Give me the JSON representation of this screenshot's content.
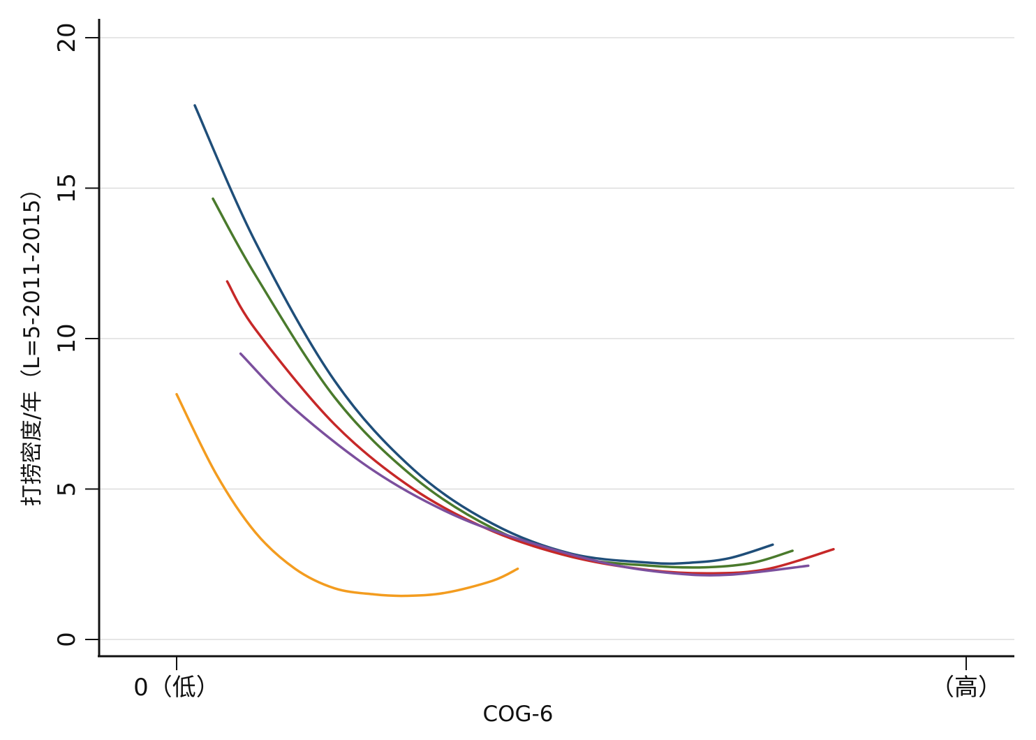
{
  "chart_data": {
    "type": "line",
    "title": "",
    "xlabel": "COG-6",
    "ylabel": "打捞密度/年（L=5-2011-2015）",
    "ylim": [
      0,
      20
    ],
    "yticks": [
      0,
      5,
      10,
      15,
      20
    ],
    "xlim": [
      -0.1,
      1.06
    ],
    "xticks": [
      {
        "value": 0,
        "label": "0（低）"
      },
      {
        "value": 1,
        "label": "（高）"
      }
    ],
    "grid": true,
    "legend": "none",
    "series": [
      {
        "color": "#1f4e79",
        "x": [
          0.023,
          0.1,
          0.2,
          0.3,
          0.4,
          0.5,
          0.6,
          0.65,
          0.7,
          0.755
        ],
        "y": [
          17.75,
          13.2,
          8.6,
          5.65,
          3.85,
          2.85,
          2.55,
          2.55,
          2.7,
          3.15
        ]
      },
      {
        "color": "#4a7a2c",
        "x": [
          0.046,
          0.1,
          0.2,
          0.3,
          0.4,
          0.5,
          0.6,
          0.67,
          0.73,
          0.78
        ],
        "y": [
          14.65,
          12.1,
          8.05,
          5.4,
          3.7,
          2.75,
          2.45,
          2.4,
          2.55,
          2.95
        ]
      },
      {
        "color": "#c62828",
        "x": [
          0.064,
          0.1,
          0.2,
          0.3,
          0.4,
          0.5,
          0.6,
          0.68,
          0.75,
          0.832
        ],
        "y": [
          11.9,
          10.3,
          7.15,
          5.0,
          3.6,
          2.75,
          2.3,
          2.2,
          2.35,
          3.0
        ]
      },
      {
        "color": "#7b4f9d",
        "x": [
          0.081,
          0.15,
          0.25,
          0.35,
          0.45,
          0.55,
          0.63,
          0.7,
          0.8
        ],
        "y": [
          9.5,
          7.65,
          5.6,
          4.15,
          3.2,
          2.5,
          2.2,
          2.15,
          2.45
        ]
      },
      {
        "color": "#f39c1f",
        "x": [
          0.0,
          0.05,
          0.1,
          0.15,
          0.2,
          0.25,
          0.29,
          0.34,
          0.4,
          0.432
        ],
        "y": [
          8.15,
          5.5,
          3.55,
          2.35,
          1.7,
          1.5,
          1.45,
          1.55,
          1.95,
          2.35
        ]
      }
    ]
  }
}
